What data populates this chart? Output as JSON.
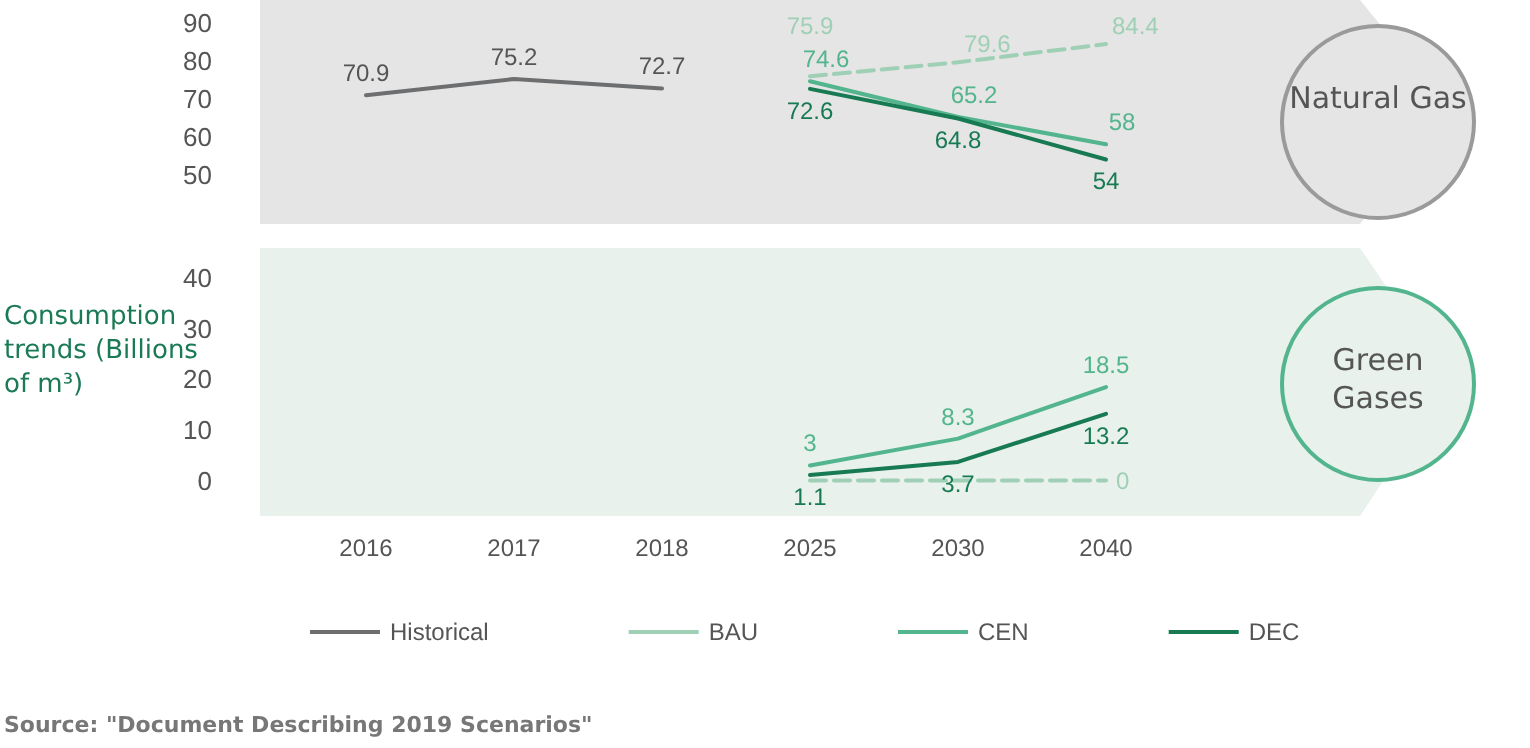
{
  "chart_data": [
    {
      "type": "line",
      "ylabel": "Consumption trends (Billions of m³)",
      "categories": [
        "2016",
        "2017",
        "2018",
        "2025",
        "2030",
        "2040"
      ],
      "ylim": [
        37,
        96
      ],
      "yticks": [
        50,
        60,
        70,
        80,
        90
      ],
      "tick_labels": "y",
      "grid": false,
      "legend": "bottom",
      "marker": "none",
      "annotations": [
        "Natural Gas",
        "Source: \"Document Describing 2019 Scenarios\""
      ],
      "series": [
        {
          "name": "Historical",
          "color": "#6d6e70",
          "line_style": "solid",
          "values": [
            70.9,
            75.2,
            72.7,
            null,
            null,
            null
          ],
          "value_labels": [
            "70.9",
            "75.2",
            "72.7",
            null,
            null,
            null
          ]
        },
        {
          "name": "BAU",
          "color": "#9fd0b6",
          "line_style": "dashed",
          "values": [
            null,
            null,
            null,
            75.9,
            79.6,
            84.4
          ],
          "value_labels": [
            null,
            null,
            null,
            "75.9",
            "79.6",
            "84.4"
          ]
        },
        {
          "name": "CEN",
          "color": "#52b58d",
          "line_style": "solid",
          "values": [
            null,
            null,
            null,
            74.6,
            65.2,
            58
          ],
          "value_labels": [
            null,
            null,
            null,
            "74.6",
            "65.2",
            "58"
          ]
        },
        {
          "name": "DEC",
          "color": "#177a53",
          "line_style": "solid",
          "values": [
            null,
            null,
            null,
            72.6,
            64.8,
            54
          ],
          "value_labels": [
            null,
            null,
            null,
            "72.6",
            "64.8",
            "54"
          ]
        }
      ]
    },
    {
      "type": "line",
      "categories": [
        "2016",
        "2017",
        "2018",
        "2025",
        "2030",
        "2040"
      ],
      "ylim": [
        -7,
        46
      ],
      "yticks": [
        0,
        10,
        20,
        30,
        40
      ],
      "grid": false,
      "legend": false,
      "marker": "none",
      "annotations": [
        "Green Gases"
      ],
      "series": [
        {
          "color": "#9fd0b6",
          "line_style": "dashed",
          "values": [
            null,
            null,
            null,
            0,
            0,
            0
          ],
          "value_labels": [
            null,
            null,
            null,
            null,
            null,
            "0"
          ]
        },
        {
          "color": "#52b58d",
          "line_style": "solid",
          "values": [
            null,
            null,
            null,
            3,
            8.3,
            18.5
          ],
          "value_labels": [
            null,
            null,
            null,
            "3",
            "8.3",
            "18.5"
          ]
        },
        {
          "color": "#177a53",
          "line_style": "solid",
          "values": [
            null,
            null,
            null,
            1.1,
            3.7,
            13.2
          ],
          "value_labels": [
            null,
            null,
            null,
            "1.1",
            "3.7",
            "13.2"
          ]
        }
      ]
    }
  ]
}
